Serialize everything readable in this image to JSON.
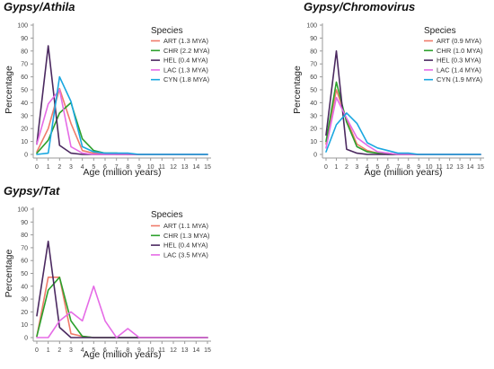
{
  "chart_data": [
    {
      "type": "line",
      "title": "Gypsy/Athila",
      "xlabel": "Age (million years)",
      "ylabel": "Percentage",
      "xlim": [
        0,
        15
      ],
      "ylim": [
        0,
        100
      ],
      "xticks": [
        0,
        1,
        2,
        3,
        4,
        5,
        6,
        7,
        8,
        9,
        10,
        11,
        12,
        13,
        14,
        15
      ],
      "yticks": [
        0,
        10,
        20,
        30,
        40,
        50,
        60,
        70,
        80,
        90,
        100
      ],
      "grid": false,
      "legend_title": "Species",
      "legend_position": "top-right",
      "series": [
        {
          "name": "ART (1.3 MYA)",
          "color": "#f07b6a",
          "x": [
            0,
            1,
            2,
            3,
            4,
            5,
            6,
            7,
            8,
            9,
            10,
            11,
            12,
            13,
            14,
            15
          ],
          "values": [
            2,
            20,
            51,
            24,
            3,
            1,
            1,
            0,
            0,
            0,
            0,
            0,
            0,
            0,
            0,
            0
          ]
        },
        {
          "name": "CHR (2.2 MYA)",
          "color": "#2ca02c",
          "x": [
            0,
            1,
            2,
            3,
            4,
            5,
            6,
            7,
            8,
            9,
            10,
            11,
            12,
            13,
            14,
            15
          ],
          "values": [
            1,
            11,
            32,
            40,
            12,
            3,
            1,
            1,
            0,
            0,
            0,
            0,
            0,
            0,
            0,
            0
          ]
        },
        {
          "name": "HEL (0.4 MYA)",
          "color": "#4b2960",
          "x": [
            0,
            1,
            2,
            3,
            4,
            5,
            6,
            7,
            8,
            9,
            10,
            11,
            12,
            13,
            14,
            15
          ],
          "values": [
            8,
            84,
            7,
            1,
            0,
            0,
            0,
            0,
            0,
            0,
            0,
            0,
            0,
            0,
            0,
            0
          ]
        },
        {
          "name": "LAC (1.3 MYA)",
          "color": "#e56be6",
          "x": [
            0,
            1,
            2,
            3,
            4,
            5,
            6,
            7,
            8,
            9,
            10,
            11,
            12,
            13,
            14,
            15
          ],
          "values": [
            8,
            39,
            50,
            6,
            1,
            0,
            0,
            0,
            0,
            0,
            0,
            0,
            0,
            0,
            0,
            0
          ]
        },
        {
          "name": "CYN (1.8 MYA)",
          "color": "#1aa7e0",
          "x": [
            0,
            1,
            2,
            3,
            4,
            5,
            6,
            7,
            8,
            9,
            10,
            11,
            12,
            13,
            14,
            15
          ],
          "values": [
            0,
            1,
            60,
            41,
            6,
            2,
            1,
            1,
            1,
            0,
            0,
            0,
            0,
            0,
            0,
            0
          ]
        }
      ]
    },
    {
      "type": "line",
      "title": "Gypsy/Chromovirus",
      "xlabel": "Age (million years)",
      "ylabel": "Percentage",
      "xlim": [
        0,
        15
      ],
      "ylim": [
        0,
        100
      ],
      "xticks": [
        0,
        1,
        2,
        3,
        4,
        5,
        6,
        7,
        8,
        9,
        10,
        11,
        12,
        13,
        14,
        15
      ],
      "yticks": [
        0,
        10,
        20,
        30,
        40,
        50,
        60,
        70,
        80,
        90,
        100
      ],
      "grid": false,
      "legend_title": "Species",
      "legend_position": "top-right",
      "series": [
        {
          "name": "ART (0.9 MYA)",
          "color": "#f07b6a",
          "x": [
            0,
            1,
            2,
            3,
            4,
            5,
            6,
            7,
            8,
            9,
            10,
            11,
            12,
            13,
            14,
            15
          ],
          "values": [
            8,
            50,
            27,
            8,
            3,
            1,
            1,
            0,
            0,
            0,
            0,
            0,
            0,
            0,
            0,
            0
          ]
        },
        {
          "name": "CHR (1.0 MYA)",
          "color": "#2ca02c",
          "x": [
            0,
            1,
            2,
            3,
            4,
            5,
            6,
            7,
            8,
            9,
            10,
            11,
            12,
            13,
            14,
            15
          ],
          "values": [
            10,
            56,
            25,
            6,
            2,
            1,
            0,
            0,
            0,
            0,
            0,
            0,
            0,
            0,
            0,
            0
          ]
        },
        {
          "name": "HEL (0.3 MYA)",
          "color": "#4b2960",
          "x": [
            0,
            1,
            2,
            3,
            4,
            5,
            6,
            7,
            8,
            9,
            10,
            11,
            12,
            13,
            14,
            15
          ],
          "values": [
            15,
            80,
            4,
            1,
            0,
            0,
            0,
            0,
            0,
            0,
            0,
            0,
            0,
            0,
            0,
            0
          ]
        },
        {
          "name": "LAC (1.4 MYA)",
          "color": "#e56be6",
          "x": [
            0,
            1,
            2,
            3,
            4,
            5,
            6,
            7,
            8,
            9,
            10,
            11,
            12,
            13,
            14,
            15
          ],
          "values": [
            5,
            44,
            28,
            13,
            7,
            2,
            1,
            0,
            0,
            0,
            0,
            0,
            0,
            0,
            0,
            0
          ]
        },
        {
          "name": "CYN (1.9 MYA)",
          "color": "#1aa7e0",
          "x": [
            0,
            1,
            2,
            3,
            4,
            5,
            6,
            7,
            8,
            9,
            10,
            11,
            12,
            13,
            14,
            15
          ],
          "values": [
            2,
            23,
            32,
            24,
            9,
            5,
            3,
            1,
            1,
            0,
            0,
            0,
            0,
            0,
            0,
            0
          ]
        }
      ]
    },
    {
      "type": "line",
      "title": "Gypsy/Tat",
      "xlabel": "Age (million years)",
      "ylabel": "Percentage",
      "xlim": [
        0,
        15
      ],
      "ylim": [
        0,
        100
      ],
      "xticks": [
        0,
        1,
        2,
        3,
        4,
        5,
        6,
        7,
        8,
        9,
        10,
        11,
        12,
        13,
        14,
        15
      ],
      "yticks": [
        0,
        10,
        20,
        30,
        40,
        50,
        60,
        70,
        80,
        90,
        100
      ],
      "grid": false,
      "legend_title": "Species",
      "legend_position": "top-right",
      "series": [
        {
          "name": "ART (1.1 MYA)",
          "color": "#f07b6a",
          "x": [
            0,
            1,
            2,
            3,
            4,
            5,
            6,
            7,
            8,
            9,
            10,
            11,
            12,
            13,
            14,
            15
          ],
          "values": [
            1,
            47,
            47,
            3,
            1,
            0,
            0,
            0,
            0,
            0,
            0,
            0,
            0,
            0,
            0,
            0
          ]
        },
        {
          "name": "CHR (1.3 MYA)",
          "color": "#2ca02c",
          "x": [
            0,
            1,
            2,
            3,
            4,
            5,
            6,
            7,
            8,
            9,
            10,
            11,
            12,
            13,
            14,
            15
          ],
          "values": [
            1,
            37,
            47,
            13,
            1,
            0,
            0,
            0,
            0,
            0,
            0,
            0,
            0,
            0,
            0,
            0
          ]
        },
        {
          "name": "HEL (0.4 MYA)",
          "color": "#4b2960",
          "x": [
            0,
            1,
            2,
            3,
            4,
            5,
            6,
            7,
            8,
            9,
            10,
            11,
            12,
            13,
            14,
            15
          ],
          "values": [
            17,
            75,
            8,
            0,
            0,
            0,
            0,
            0,
            0,
            0,
            0,
            0,
            0,
            0,
            0,
            0
          ]
        },
        {
          "name": "LAC (3.5 MYA)",
          "color": "#e56be6",
          "x": [
            0,
            1,
            2,
            3,
            4,
            5,
            6,
            7,
            8,
            9,
            10,
            11,
            12,
            13,
            14,
            15
          ],
          "values": [
            0,
            0,
            13,
            20,
            13,
            40,
            13,
            0,
            7,
            0,
            0,
            0,
            0,
            0,
            0,
            0
          ]
        }
      ]
    }
  ]
}
